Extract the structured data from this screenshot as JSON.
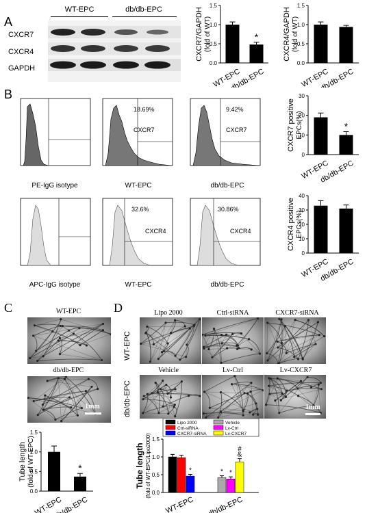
{
  "panels": {
    "A": "A",
    "B": "B",
    "C": "C",
    "D": "D"
  },
  "panel_a": {
    "groups": [
      "WT-EPC",
      "db/db-EPC"
    ],
    "rows": [
      "CXCR7",
      "CXCR4",
      "GAPDH"
    ]
  },
  "panel_b": {
    "flow": [
      {
        "label": "PE-IgG isotype",
        "pct": "",
        "marker": ""
      },
      {
        "label": "WT-EPC",
        "pct": "18.69%",
        "marker": "CXCR7"
      },
      {
        "label": "db/db-EPC",
        "pct": "9.42%",
        "marker": "CXCR7"
      },
      {
        "label": "APC-IgG isotype",
        "pct": "",
        "marker": ""
      },
      {
        "label": "WT-EPC",
        "pct": "32.6%",
        "marker": "CXCR4"
      },
      {
        "label": "db/db-EPC",
        "pct": "30.86%",
        "marker": "CXCR4"
      }
    ]
  },
  "panel_c": {
    "images": [
      "WT-EPC",
      "db/db-EPC"
    ],
    "scale": "1mm"
  },
  "panel_d": {
    "columns": [
      "Lipo 2000",
      "Ctrl-siRNA",
      "CXCR7-siRNA"
    ],
    "columns2": [
      "Vehicle",
      "Lv-Ctrl",
      "Lv-CXCR7"
    ],
    "rows": [
      "WT-EPC",
      "db/db-EPC"
    ],
    "scale": "1mm"
  },
  "chart_data": [
    {
      "type": "bar",
      "ylabel": "CXCR7/GAPDH\n(fold of WT)",
      "categories": [
        "WT-EPC",
        "db/db-EPC"
      ],
      "values": [
        1.0,
        0.48
      ],
      "errors": [
        0.07,
        0.06
      ],
      "ylim": [
        0,
        1.5
      ],
      "yticks": [
        "0.0",
        "0.5",
        "1.0",
        "1.5"
      ],
      "annotations": [
        "",
        "*"
      ]
    },
    {
      "type": "bar",
      "ylabel": "CXCR4/GAPDH\n(fold of WT)",
      "categories": [
        "WT-EPC",
        "db/db-EPC"
      ],
      "values": [
        1.0,
        0.94
      ],
      "errors": [
        0.07,
        0.04
      ],
      "ylim": [
        0,
        1.5
      ],
      "yticks": [
        "0.0",
        "0.5",
        "1.0",
        "1.5"
      ],
      "annotations": [
        "",
        ""
      ]
    },
    {
      "type": "bar",
      "ylabel": "CXCR7 positive\nEPCs(%)",
      "categories": [
        "WT-EPC",
        "db/db-EPC"
      ],
      "values": [
        19,
        10
      ],
      "errors": [
        2.2,
        1.7
      ],
      "ylim": [
        0,
        30
      ],
      "yticks": [
        "0",
        "10",
        "20",
        "30"
      ],
      "annotations": [
        "",
        "*"
      ]
    },
    {
      "type": "bar",
      "ylabel": "CXCR4 positive\nEPCs(%)",
      "categories": [
        "WT-EPC",
        "db/db-EPC"
      ],
      "values": [
        33,
        31
      ],
      "errors": [
        3.5,
        2.5
      ],
      "ylim": [
        0,
        40
      ],
      "yticks": [
        "0",
        "10",
        "20",
        "30",
        "40"
      ],
      "annotations": [
        "",
        ""
      ]
    },
    {
      "type": "bar",
      "ylabel": "Tube length\n(fold of WT-EPC)",
      "categories": [
        "WT-EPC",
        "db/db-EPC"
      ],
      "values": [
        1.0,
        0.37
      ],
      "errors": [
        0.15,
        0.08
      ],
      "ylim": [
        0,
        1.5
      ],
      "yticks": [
        "0.0",
        "0.5",
        "1.0",
        "1.5"
      ],
      "annotations": [
        "",
        "*"
      ]
    },
    {
      "type": "bar",
      "ylabel": "Tube length\n(fold of WT-EPC/Lipo2000)",
      "categories": [
        "WT-EPC",
        "db/db-EPC"
      ],
      "series": [
        {
          "name": "Lipo 2000",
          "color": "#000000",
          "values": [
            1.0,
            null
          ],
          "errors": [
            0.07,
            null
          ]
        },
        {
          "name": "Ctrl-siRNA",
          "color": "#ff0000",
          "values": [
            0.98,
            null
          ],
          "errors": [
            0.07,
            null
          ]
        },
        {
          "name": "CXCR7-siRNA",
          "color": "#0000ff",
          "values": [
            0.46,
            null
          ],
          "errors": [
            0.05,
            null
          ]
        },
        {
          "name": "Vehicle",
          "color": "#aaaaaa",
          "values": [
            null,
            0.42
          ],
          "errors": [
            null,
            0.05
          ]
        },
        {
          "name": "Lv-Ctrl",
          "color": "#ff00ff",
          "values": [
            null,
            0.38
          ],
          "errors": [
            null,
            0.06
          ]
        },
        {
          "name": "Lv-CXCR7",
          "color": "#ffff00",
          "values": [
            null,
            0.86
          ],
          "errors": [
            null,
            0.09
          ]
        }
      ],
      "ylim": [
        0,
        1.5
      ],
      "yticks": [
        "0.0",
        "0.5",
        "1.0",
        "1.5"
      ],
      "annotations": [
        "",
        "",
        "*",
        "*",
        "*",
        "#\n&"
      ]
    }
  ]
}
